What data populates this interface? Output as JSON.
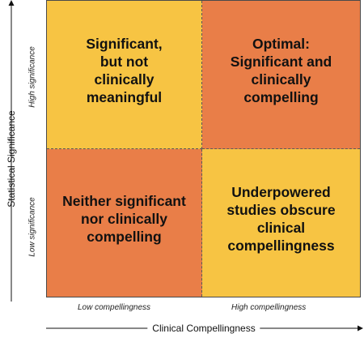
{
  "quadrants": {
    "top_left": {
      "lines": [
        "Significant,",
        "but not",
        "clinically",
        "meaningful"
      ],
      "color": "#f7c443"
    },
    "top_right": {
      "lines": [
        "Optimal:",
        "Significant and",
        "clinically",
        "compelling"
      ],
      "color": "#e97e48"
    },
    "bottom_left": {
      "lines": [
        "Neither significant",
        "nor clinically",
        "compelling"
      ],
      "color": "#e97e48"
    },
    "bottom_right": {
      "lines": [
        "Underpowered",
        "studies obscure",
        "clinical",
        "compellingness"
      ],
      "color": "#f7c443"
    }
  },
  "x_axis": {
    "title": "Clinical Compellingness",
    "low_label": "Low compellingness",
    "high_label": "High compellingness"
  },
  "y_axis": {
    "title": "Statistical Significance",
    "low_label": "Low significance",
    "high_label": "High significance"
  }
}
